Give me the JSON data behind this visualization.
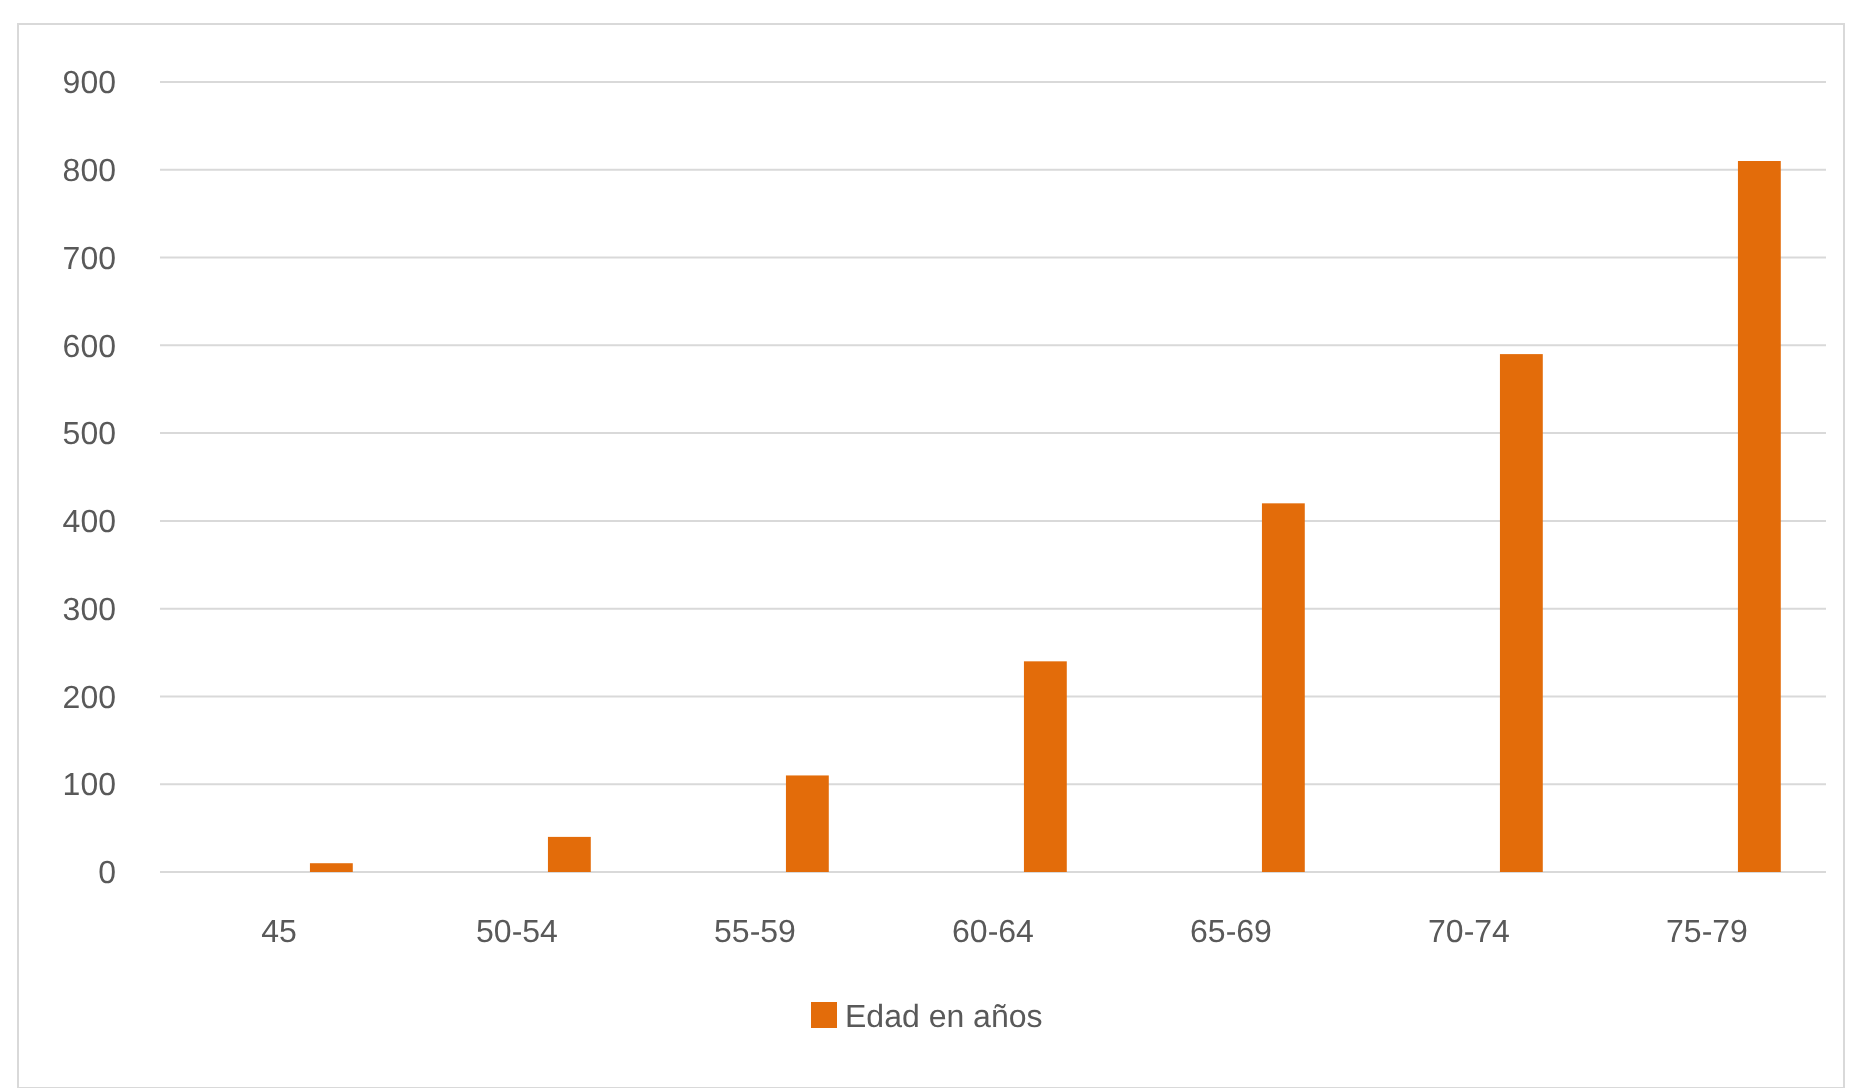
{
  "chart_data": {
    "type": "bar",
    "categories": [
      "45",
      "50-54",
      "55-59",
      "60-64",
      "65-69",
      "70-74",
      "75-79"
    ],
    "series": [
      {
        "name": "Edad en años",
        "color": "#e36c0a",
        "values": [
          10,
          40,
          110,
          240,
          420,
          590,
          810
        ]
      }
    ],
    "ylim": [
      0,
      900
    ],
    "yticks": [
      0,
      100,
      200,
      300,
      400,
      500,
      600,
      700,
      800,
      900
    ],
    "grid": "y",
    "legend": "bottom"
  }
}
